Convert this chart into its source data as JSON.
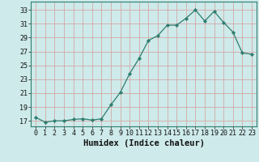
{
  "x": [
    0,
    1,
    2,
    3,
    4,
    5,
    6,
    7,
    8,
    9,
    10,
    11,
    12,
    13,
    14,
    15,
    16,
    17,
    18,
    19,
    20,
    21,
    22,
    23
  ],
  "y": [
    17.5,
    16.8,
    17.0,
    17.0,
    17.2,
    17.3,
    17.1,
    17.3,
    19.3,
    21.1,
    23.8,
    26.0,
    28.6,
    29.3,
    30.8,
    30.8,
    31.8,
    33.0,
    31.4,
    32.8,
    31.2,
    29.8,
    26.8,
    26.6
  ],
  "line_color": "#2e7d6e",
  "marker": "D",
  "marker_size": 2.2,
  "bg_color": "#ceeaea",
  "grid_color": "#b8d8d8",
  "xlabel": "Humidex (Indice chaleur)",
  "ylabel_ticks": [
    17,
    19,
    21,
    23,
    25,
    27,
    29,
    31,
    33
  ],
  "xlim": [
    -0.5,
    23.5
  ],
  "ylim": [
    16.2,
    34.2
  ],
  "xticks": [
    0,
    1,
    2,
    3,
    4,
    5,
    6,
    7,
    8,
    9,
    10,
    11,
    12,
    13,
    14,
    15,
    16,
    17,
    18,
    19,
    20,
    21,
    22,
    23
  ],
  "axis_fontsize": 7.5,
  "tick_fontsize": 6.0
}
